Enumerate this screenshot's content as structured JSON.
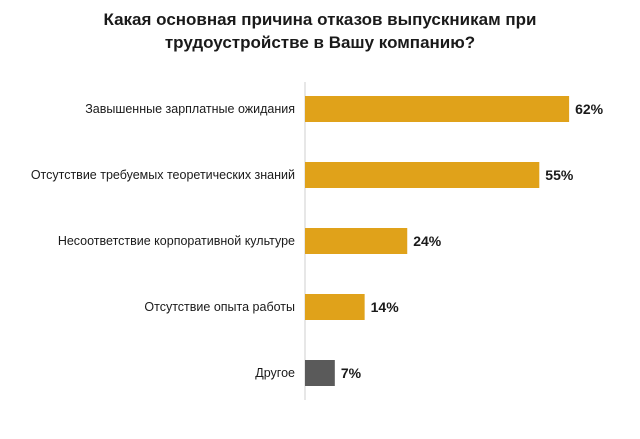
{
  "chart_data": {
    "type": "bar",
    "orientation": "horizontal",
    "title_lines": [
      "Какая основная причина отказов выпускникам при",
      "трудоустройстве в Вашу компанию?"
    ],
    "categories": [
      "Завышенные зарплатные ожидания",
      "Отсутствие требуемых теоретических знаний",
      "Несоответствие корпоративной культуре",
      "Отсутствие опыта работы",
      "Другое"
    ],
    "values": [
      62,
      55,
      24,
      14,
      7
    ],
    "value_labels": [
      "62%",
      "55%",
      "24%",
      "14%",
      "7%"
    ],
    "bar_colors": [
      "#e0a21a",
      "#e0a21a",
      "#e0a21a",
      "#e0a21a",
      "#5a5a5a"
    ],
    "xlim": [
      0,
      100
    ],
    "grid": false,
    "legend": "none"
  }
}
